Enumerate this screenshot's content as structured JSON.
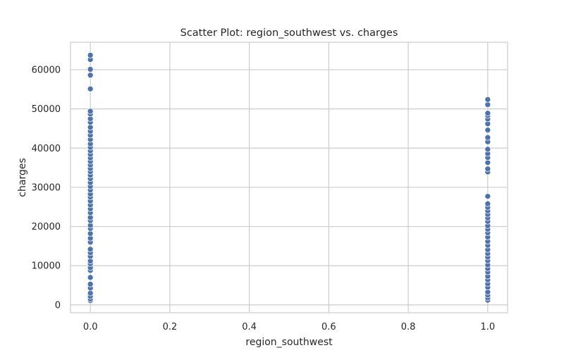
{
  "chart_data": {
    "type": "scatter",
    "title": "Scatter Plot: region_southwest vs. charges",
    "xlabel": "region_southwest",
    "ylabel": "charges",
    "xlim": [
      -0.05,
      1.05
    ],
    "ylim": [
      -2000,
      67000
    ],
    "xticks": [
      0.0,
      0.2,
      0.4,
      0.6,
      0.8,
      1.0
    ],
    "xtick_labels": [
      "0.0",
      "0.2",
      "0.4",
      "0.6",
      "0.8",
      "1.0"
    ],
    "yticks": [
      0,
      10000,
      20000,
      30000,
      40000,
      50000,
      60000
    ],
    "ytick_labels": [
      "0",
      "10000",
      "20000",
      "30000",
      "40000",
      "50000",
      "60000"
    ],
    "grid": true,
    "marker_color": "#4c72b0",
    "points": [
      {
        "x": 0,
        "y": 1100
      },
      {
        "x": 0,
        "y": 1500
      },
      {
        "x": 0,
        "y": 2200
      },
      {
        "x": 0,
        "y": 3000
      },
      {
        "x": 0,
        "y": 4300
      },
      {
        "x": 0,
        "y": 5300
      },
      {
        "x": 0,
        "y": 7000
      },
      {
        "x": 0,
        "y": 8800
      },
      {
        "x": 0,
        "y": 9500
      },
      {
        "x": 0,
        "y": 10500
      },
      {
        "x": 0,
        "y": 11200
      },
      {
        "x": 0,
        "y": 12400
      },
      {
        "x": 0,
        "y": 13300
      },
      {
        "x": 0,
        "y": 14200
      },
      {
        "x": 0,
        "y": 16000
      },
      {
        "x": 0,
        "y": 17000
      },
      {
        "x": 0,
        "y": 18200
      },
      {
        "x": 0,
        "y": 19500
      },
      {
        "x": 0,
        "y": 20300
      },
      {
        "x": 0,
        "y": 21500
      },
      {
        "x": 0,
        "y": 22300
      },
      {
        "x": 0,
        "y": 23500
      },
      {
        "x": 0,
        "y": 24500
      },
      {
        "x": 0,
        "y": 25500
      },
      {
        "x": 0,
        "y": 26500
      },
      {
        "x": 0,
        "y": 27500
      },
      {
        "x": 0,
        "y": 28300
      },
      {
        "x": 0,
        "y": 29300
      },
      {
        "x": 0,
        "y": 30200
      },
      {
        "x": 0,
        "y": 31200
      },
      {
        "x": 0,
        "y": 32200
      },
      {
        "x": 0,
        "y": 33100
      },
      {
        "x": 0,
        "y": 34000
      },
      {
        "x": 0,
        "y": 34800
      },
      {
        "x": 0,
        "y": 35700
      },
      {
        "x": 0,
        "y": 36600
      },
      {
        "x": 0,
        "y": 37500
      },
      {
        "x": 0,
        "y": 38400
      },
      {
        "x": 0,
        "y": 39300
      },
      {
        "x": 0,
        "y": 40200
      },
      {
        "x": 0,
        "y": 41100
      },
      {
        "x": 0,
        "y": 42200
      },
      {
        "x": 0,
        "y": 43300
      },
      {
        "x": 0,
        "y": 44300
      },
      {
        "x": 0,
        "y": 45300
      },
      {
        "x": 0,
        "y": 46600
      },
      {
        "x": 0,
        "y": 47500
      },
      {
        "x": 0,
        "y": 48700
      },
      {
        "x": 0,
        "y": 49400
      },
      {
        "x": 0,
        "y": 55100
      },
      {
        "x": 0,
        "y": 58600
      },
      {
        "x": 0,
        "y": 60100
      },
      {
        "x": 0,
        "y": 62600
      },
      {
        "x": 0,
        "y": 63700
      },
      {
        "x": 1,
        "y": 1200
      },
      {
        "x": 1,
        "y": 1800
      },
      {
        "x": 1,
        "y": 2500
      },
      {
        "x": 1,
        "y": 3300
      },
      {
        "x": 1,
        "y": 4500
      },
      {
        "x": 1,
        "y": 5400
      },
      {
        "x": 1,
        "y": 6400
      },
      {
        "x": 1,
        "y": 7300
      },
      {
        "x": 1,
        "y": 8400
      },
      {
        "x": 1,
        "y": 9300
      },
      {
        "x": 1,
        "y": 10200
      },
      {
        "x": 1,
        "y": 11300
      },
      {
        "x": 1,
        "y": 12200
      },
      {
        "x": 1,
        "y": 13100
      },
      {
        "x": 1,
        "y": 14100
      },
      {
        "x": 1,
        "y": 15200
      },
      {
        "x": 1,
        "y": 16200
      },
      {
        "x": 1,
        "y": 17300
      },
      {
        "x": 1,
        "y": 18400
      },
      {
        "x": 1,
        "y": 19300
      },
      {
        "x": 1,
        "y": 20200
      },
      {
        "x": 1,
        "y": 21300
      },
      {
        "x": 1,
        "y": 22200
      },
      {
        "x": 1,
        "y": 23100
      },
      {
        "x": 1,
        "y": 24000
      },
      {
        "x": 1,
        "y": 24900
      },
      {
        "x": 1,
        "y": 25800
      },
      {
        "x": 1,
        "y": 27700
      },
      {
        "x": 1,
        "y": 33900
      },
      {
        "x": 1,
        "y": 34700
      },
      {
        "x": 1,
        "y": 36300
      },
      {
        "x": 1,
        "y": 37600
      },
      {
        "x": 1,
        "y": 38600
      },
      {
        "x": 1,
        "y": 39700
      },
      {
        "x": 1,
        "y": 41600
      },
      {
        "x": 1,
        "y": 42700
      },
      {
        "x": 1,
        "y": 44600
      },
      {
        "x": 1,
        "y": 46200
      },
      {
        "x": 1,
        "y": 47400
      },
      {
        "x": 1,
        "y": 48300
      },
      {
        "x": 1,
        "y": 48900
      },
      {
        "x": 1,
        "y": 51100
      },
      {
        "x": 1,
        "y": 52400
      }
    ]
  }
}
